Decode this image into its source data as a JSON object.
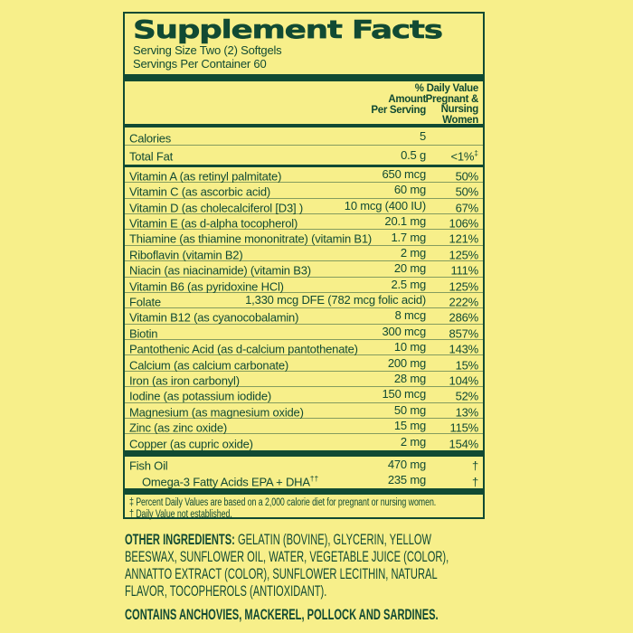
{
  "colors": {
    "background": "#f7ef8a",
    "ink": "#114a33",
    "hairline": "rgba(17,74,51,0.5)"
  },
  "label": {
    "title": "Supplement Facts",
    "serving_size": "Serving Size Two (2) Softgels",
    "servings_per_container": "Servings Per Container 60",
    "columns": {
      "amount_header": "Amount\nPer Serving",
      "dv_header": "% Daily Value\nPregnant &\nNursing\nWomen"
    },
    "rows": [
      {
        "name": "Calories",
        "amount": "5",
        "dv": "",
        "tall": true,
        "divider_after": "hairline"
      },
      {
        "name": "Total Fat",
        "amount": "0.5 g",
        "dv": "<1%",
        "dv_sup": "‡",
        "tall": true,
        "divider_after": "medium"
      },
      {
        "name": "Vitamin A (as retinyl palmitate)",
        "amount": "650 mcg",
        "dv": "50%",
        "divider_after": "hairline"
      },
      {
        "name": "Vitamin C (as ascorbic acid)",
        "amount": "60 mg",
        "dv": "50%",
        "divider_after": "hairline"
      },
      {
        "name": "Vitamin D (as cholecalciferol [D3] )",
        "amount": "10 mcg (400 IU)",
        "dv": "67%",
        "divider_after": "hairline"
      },
      {
        "name": "Vitamin E (as d-alpha tocopherol)",
        "amount": "20.1 mg",
        "dv": "106%",
        "divider_after": "hairline"
      },
      {
        "name": "Thiamine (as thiamine mononitrate) (vitamin B1)",
        "amount": "1.7 mg",
        "dv": "121%",
        "divider_after": "hairline"
      },
      {
        "name": "Riboflavin (vitamin B2)",
        "amount": "2 mg",
        "dv": "125%",
        "divider_after": "hairline"
      },
      {
        "name": "Niacin (as niacinamide) (vitamin B3)",
        "amount": "20 mg",
        "dv": "111%",
        "divider_after": "hairline"
      },
      {
        "name": "Vitamin B6 (as pyridoxine HCl)",
        "amount": "2.5 mg",
        "dv": "125%",
        "divider_after": "hairline"
      },
      {
        "name": "Folate",
        "amount": "1,330 mcg DFE (782 mcg folic acid)",
        "dv": "222%",
        "divider_after": "hairline"
      },
      {
        "name": "Vitamin B12 (as cyanocobalamin)",
        "amount": "8 mcg",
        "dv": "286%",
        "divider_after": "hairline"
      },
      {
        "name": "Biotin",
        "amount": "300 mcg",
        "dv": "857%",
        "divider_after": "hairline"
      },
      {
        "name": "Pantothenic Acid (as d-calcium pantothenate)",
        "amount": "10 mg",
        "dv": "143%",
        "divider_after": "hairline"
      },
      {
        "name": "Calcium (as calcium carbonate)",
        "amount": "200 mg",
        "dv": "15%",
        "divider_after": "hairline"
      },
      {
        "name": "Iron (as iron carbonyl)",
        "amount": "28 mg",
        "dv": "104%",
        "divider_after": "hairline"
      },
      {
        "name": "Iodine (as potassium iodide)",
        "amount": "150 mcg",
        "dv": "52%",
        "divider_after": "hairline"
      },
      {
        "name": "Magnesium (as magnesium oxide)",
        "amount": "50 mg",
        "dv": "13%",
        "divider_after": "hairline"
      },
      {
        "name": "Zinc (as zinc oxide)",
        "amount": "15 mg",
        "dv": "115%",
        "divider_after": "hairline"
      },
      {
        "name": "Copper (as cupric oxide)",
        "amount": "2 mg",
        "dv": "154%",
        "divider_after": "thick"
      },
      {
        "name": "Fish Oil",
        "amount": "470 mg",
        "dv": "†",
        "divider_after": "none"
      },
      {
        "name": "Omega-3 Fatty Acids EPA + DHA",
        "name_sup": "††",
        "amount": "235 mg",
        "dv": "†",
        "indent": true,
        "divider_after": "thick"
      }
    ],
    "footnotes": [
      "‡ Percent Daily Values are based on a 2,000 calorie diet for pregnant or nursing women.",
      "† Daily Value not established."
    ]
  },
  "other_ingredients": {
    "label": "OTHER INGREDIENTS:",
    "text": " GELATIN (BOVINE), GLYCERIN, YELLOW BEESWAX, SUNFLOWER OIL, WATER, VEGETABLE JUICE (COLOR), ANNATTO EXTRACT (COLOR), SUNFLOWER LECITHIN, NATURAL FLAVOR, TOCOPHEROLS (ANTIOXIDANT)."
  },
  "contains_statement": "CONTAINS ANCHOVIES, MACKEREL, POLLOCK AND SARDINES."
}
